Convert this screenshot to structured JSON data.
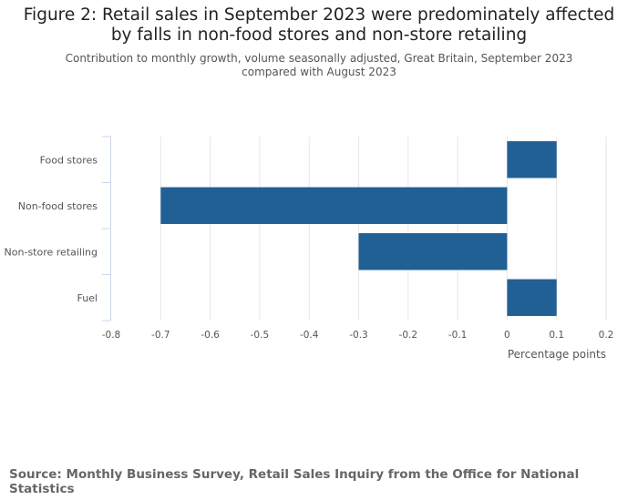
{
  "title": "Figure 2: Retail sales in September 2023 were predominately affected by falls in non-food stores and non-store retailing",
  "subtitle": "Contribution to monthly growth, volume seasonally adjusted, Great Britain, September 2023 compared with August 2023",
  "source": "Source: Monthly Business Survey, Retail Sales Inquiry from the Office for National Statistics",
  "colors": {
    "bar": "#206095",
    "grid": "#e6e6e6",
    "axis": "#ccd6eb"
  },
  "chart_data": {
    "type": "bar",
    "orientation": "horizontal",
    "categories": [
      "Food stores",
      "Non-food stores",
      "Non-store retailing",
      "Fuel"
    ],
    "values": [
      0.1,
      -0.7,
      -0.3,
      0.1
    ],
    "xlabel": "Percentage points",
    "ylabel": "",
    "xlim": [
      -0.8,
      0.2
    ],
    "xticks": [
      -0.8,
      -0.7,
      -0.6,
      -0.5,
      -0.4,
      -0.3,
      -0.2,
      -0.1,
      0,
      0.1,
      0.2
    ],
    "xtick_labels": [
      "-0.8",
      "-0.7",
      "-0.6",
      "-0.5",
      "-0.4",
      "-0.3",
      "-0.2",
      "-0.1",
      "0",
      "0.1",
      "0.2"
    ],
    "grid": true,
    "legend": "none"
  }
}
